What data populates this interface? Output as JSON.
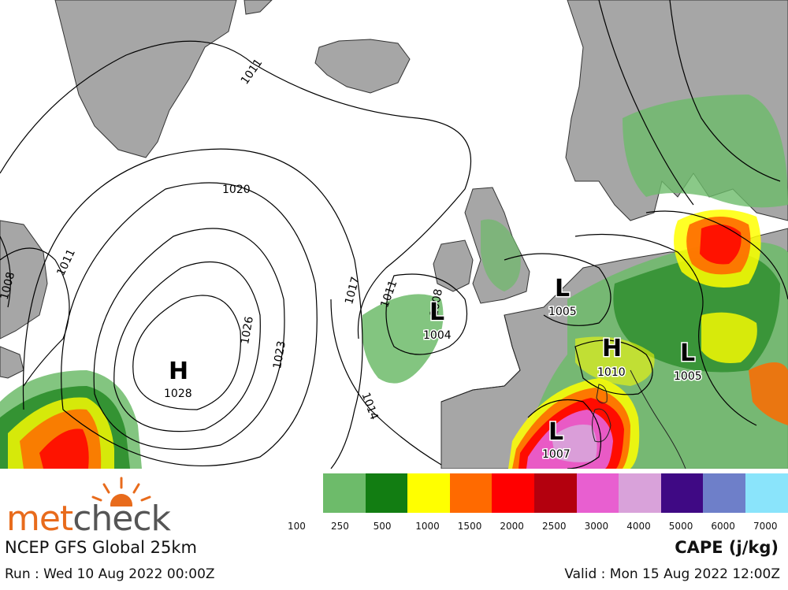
{
  "map": {
    "isobar_labels": [
      "1011",
      "1020",
      "1011",
      "1008",
      "1026",
      "1023",
      "1017",
      "1011",
      "1008",
      "1014"
    ],
    "systems": [
      {
        "letter": "H",
        "pressure": "1028"
      },
      {
        "letter": "L",
        "pressure": "1004"
      },
      {
        "letter": "L",
        "pressure": "1005"
      },
      {
        "letter": "H",
        "pressure": "1010"
      },
      {
        "letter": "L",
        "pressure": "1005"
      },
      {
        "letter": "L",
        "pressure": "1007"
      }
    ],
    "colors": {
      "land": "#a6a6a6",
      "sea": "#ffffff",
      "isobar": "#000000"
    }
  },
  "legend": {
    "title": "CAPE (j/kg)",
    "tick_labels": [
      "100",
      "250",
      "500",
      "1000",
      "1500",
      "2000",
      "2500",
      "3000",
      "4000",
      "5000",
      "6000",
      "7000"
    ],
    "bins": [
      {
        "color": "#6dbb6a"
      },
      {
        "color": "#127d12"
      },
      {
        "color": "#ffff00"
      },
      {
        "color": "#ff6a00"
      },
      {
        "color": "#ff0000"
      },
      {
        "color": "#b3000e"
      },
      {
        "color": "#e85fd0"
      },
      {
        "color": "#d9a2da"
      },
      {
        "color": "#3f0984"
      },
      {
        "color": "#6e7fc9"
      },
      {
        "color": "#8ae4fb"
      }
    ]
  },
  "footer": {
    "brand_part1": "met",
    "brand_part2": "check",
    "model": "NCEP GFS Global 25km",
    "run": "Run : Wed 10 Aug 2022 00:00Z",
    "valid": "Valid : Mon 15 Aug 2022 12:00Z"
  }
}
